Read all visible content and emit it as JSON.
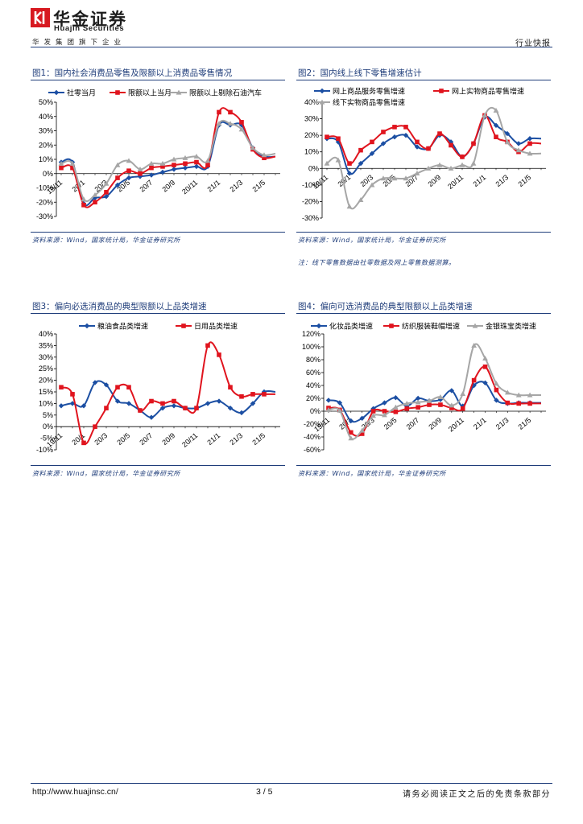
{
  "header": {
    "company_cn": "华金证券",
    "company_en": "Huajin Securities",
    "group_line": "华发集团旗下企业",
    "doc_type": "行业快报"
  },
  "colors": {
    "navy": "#1f3d7a",
    "blue": "#1c4fa3",
    "red": "#e0141e",
    "gray": "#a6a6a6"
  },
  "figures": [
    {
      "title": "图1：国内社会消费品零售及限额以上消费品零售情况",
      "source": "资料来源：Wind，国家统计局，华金证券研究所",
      "note": ""
    },
    {
      "title": "图2：国内线上线下零售增速估计",
      "source": "资料来源：Wind，国家统计局，华金证券研究所",
      "note": "注：线下零售数据由社零数据及网上零售数据测算。"
    },
    {
      "title": "图3：偏向必选消费品的典型限额以上品类增速",
      "source": "资料来源：Wind，国家统计局，华金证券研究所",
      "note": ""
    },
    {
      "title": "图4：偏向可选消费品的典型限额以上品类增速",
      "source": "资料来源：Wind，国家统计局，华金证券研究所",
      "note": ""
    }
  ],
  "chart_data": [
    {
      "type": "line",
      "title": "图1：国内社会消费品零售及限额以上消费品零售情况",
      "x": [
        "19/11",
        "19/12",
        "20/1",
        "20/2",
        "20/3",
        "20/4",
        "20/5",
        "20/6",
        "20/7",
        "20/8",
        "20/9",
        "20/10",
        "20/11",
        "20/12",
        "21/1",
        "21/2",
        "21/3",
        "21/4",
        "21/5",
        "21/6"
      ],
      "x_tick_labels": [
        "19/11",
        "20/1",
        "20/3",
        "20/5",
        "20/7",
        "20/9",
        "20/11",
        "21/1",
        "21/3",
        "21/5"
      ],
      "ylim": [
        -30,
        50
      ],
      "y_ticks": [
        -30,
        -20,
        -10,
        0,
        10,
        20,
        30,
        40,
        50
      ],
      "y_unit": "%",
      "series": [
        {
          "name": "社零当月",
          "color": "#1c4fa3",
          "marker": "diamond",
          "values": [
            8,
            8,
            -21,
            -17,
            -16,
            -8,
            -3,
            -2,
            -1,
            1,
            3,
            4,
            5,
            5,
            34,
            34,
            34,
            18,
            12,
            12
          ]
        },
        {
          "name": "限额以上当月",
          "color": "#e0141e",
          "marker": "square",
          "values": [
            4,
            4,
            -22,
            -20,
            -13,
            -3,
            2,
            0,
            4,
            5,
            6,
            7,
            8,
            6,
            43,
            43,
            36,
            17,
            11,
            12
          ]
        },
        {
          "name": "限额以上剔除石油汽车",
          "color": "#a6a6a6",
          "marker": "triangle",
          "values": [
            7,
            7,
            -18,
            -15,
            -7,
            6,
            9,
            3,
            7,
            7,
            10,
            11,
            12,
            9,
            35,
            35,
            31,
            18,
            13,
            14
          ]
        }
      ]
    },
    {
      "type": "line",
      "title": "图2：国内线上线下零售增速估计",
      "x": [
        "19/11",
        "19/12",
        "20/1",
        "20/2",
        "20/3",
        "20/4",
        "20/5",
        "20/6",
        "20/7",
        "20/8",
        "20/9",
        "20/10",
        "20/11",
        "20/12",
        "21/1",
        "21/2",
        "21/3",
        "21/4",
        "21/5",
        "21/6"
      ],
      "x_tick_labels": [
        "19/11",
        "20/1",
        "20/3",
        "20/5",
        "20/7",
        "20/9",
        "20/11",
        "21/1",
        "21/3",
        "21/5"
      ],
      "ylim": [
        -30,
        40
      ],
      "y_ticks": [
        -30,
        -20,
        -10,
        0,
        10,
        20,
        30,
        40
      ],
      "y_unit": "%",
      "series": [
        {
          "name": "网上商品服务零售增速",
          "color": "#1c4fa3",
          "marker": "diamond",
          "values": [
            18,
            16,
            -3,
            3,
            9,
            15,
            19,
            20,
            13,
            12,
            20,
            16,
            7,
            15,
            31,
            26,
            21,
            15,
            18,
            18
          ]
        },
        {
          "name": "网上实物商品零售增速",
          "color": "#e0141e",
          "marker": "square",
          "values": [
            19,
            18,
            3,
            11,
            16,
            22,
            25,
            25,
            16,
            12,
            21,
            14,
            7,
            15,
            32,
            19,
            16,
            10,
            15,
            15
          ]
        },
        {
          "name": "线下实物商品零售增速",
          "color": "#a6a6a6",
          "marker": "triangle",
          "values": [
            3,
            5,
            -23,
            -19,
            -10,
            -6,
            -6,
            -6,
            -3,
            0,
            2,
            0,
            2,
            3,
            32,
            35,
            16,
            11,
            9,
            9
          ]
        }
      ]
    },
    {
      "type": "line",
      "title": "图3：偏向必选消费品的典型限额以上品类增速",
      "x": [
        "19/11",
        "19/12",
        "20/1",
        "20/2",
        "20/3",
        "20/4",
        "20/5",
        "20/6",
        "20/7",
        "20/8",
        "20/9",
        "20/10",
        "20/11",
        "20/12",
        "21/1",
        "21/2",
        "21/3",
        "21/4",
        "21/5",
        "21/6"
      ],
      "x_tick_labels": [
        "19/11",
        "20/1",
        "20/3",
        "20/5",
        "20/7",
        "20/9",
        "20/11",
        "21/1",
        "21/3",
        "21/5"
      ],
      "ylim": [
        -10,
        40
      ],
      "y_ticks": [
        -10,
        -5,
        0,
        5,
        10,
        15,
        20,
        25,
        30,
        35,
        40
      ],
      "y_unit": "%",
      "series": [
        {
          "name": "粮油食品类增速",
          "color": "#1c4fa3",
          "marker": "diamond",
          "values": [
            9,
            10,
            9,
            19,
            18,
            11,
            10,
            7,
            4,
            8,
            9,
            8,
            8,
            10,
            11,
            8,
            6,
            10,
            15,
            15
          ]
        },
        {
          "name": "日用品类增速",
          "color": "#e0141e",
          "marker": "square",
          "values": [
            17,
            14,
            -7,
            0,
            8,
            17,
            17,
            7,
            11,
            10,
            11,
            8,
            8,
            35,
            31,
            17,
            13,
            14,
            14,
            14
          ]
        }
      ]
    },
    {
      "type": "line",
      "title": "图4：偏向可选消费品的典型限额以上品类增速",
      "x": [
        "19/11",
        "19/12",
        "20/1",
        "20/2",
        "20/3",
        "20/4",
        "20/5",
        "20/6",
        "20/7",
        "20/8",
        "20/9",
        "20/10",
        "20/11",
        "20/12",
        "21/1",
        "21/2",
        "21/3",
        "21/4",
        "21/5",
        "21/6"
      ],
      "x_tick_labels": [
        "19/11",
        "20/1",
        "20/3",
        "20/5",
        "20/7",
        "20/9",
        "20/11",
        "21/1",
        "21/3",
        "21/5"
      ],
      "ylim": [
        -60,
        120
      ],
      "y_ticks": [
        -60,
        -40,
        -20,
        0,
        20,
        40,
        60,
        80,
        100,
        120
      ],
      "y_unit": "%",
      "series": [
        {
          "name": "化妆品类增速",
          "color": "#1c4fa3",
          "marker": "diamond",
          "values": [
            17,
            13,
            -15,
            -11,
            4,
            13,
            21,
            8,
            20,
            16,
            18,
            32,
            8,
            40,
            44,
            17,
            12,
            13,
            13,
            13
          ]
        },
        {
          "name": "纺织服装鞋帽增速",
          "color": "#e0141e",
          "marker": "square",
          "values": [
            5,
            2,
            -33,
            -35,
            0,
            0,
            -1,
            4,
            6,
            10,
            10,
            5,
            4,
            48,
            69,
            33,
            13,
            12,
            12,
            12
          ]
        },
        {
          "name": "金银珠宝类增速",
          "color": "#a6a6a6",
          "marker": "triangle",
          "values": [
            2,
            1,
            -42,
            -30,
            -7,
            -6,
            6,
            12,
            14,
            16,
            22,
            9,
            27,
            102,
            82,
            43,
            29,
            25,
            25,
            25
          ]
        }
      ]
    }
  ],
  "footer": {
    "url": "http://www.huajinsc.cn/",
    "page": "3 / 5",
    "disclaimer": "请务必阅读正文之后的免责条款部分"
  }
}
